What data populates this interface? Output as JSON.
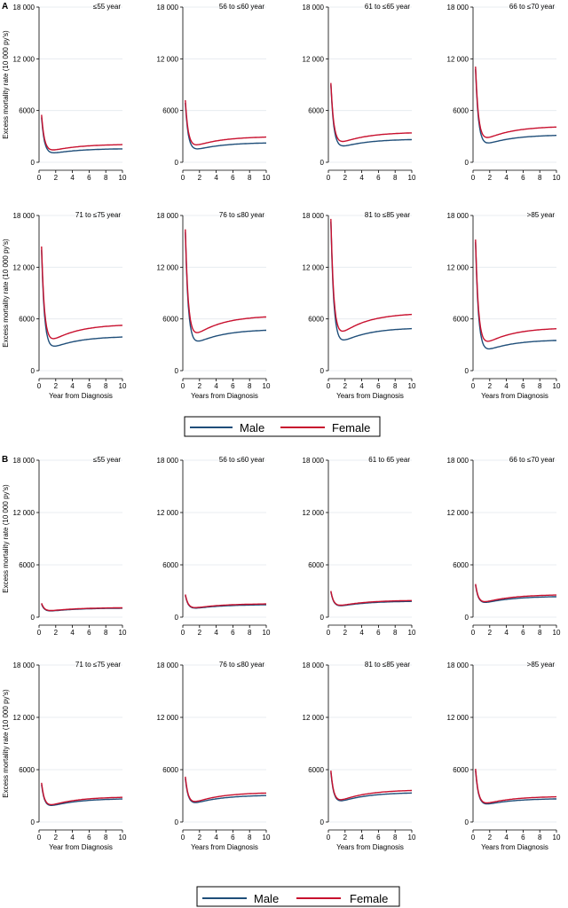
{
  "colors": {
    "male": "#1f4e79",
    "female": "#c8102e",
    "grid": "#e3e8ee",
    "axis": "#000000"
  },
  "figure": {
    "panel_labels": [
      "A",
      "B"
    ]
  },
  "legend": {
    "male_label": "Male",
    "female_label": "Female"
  },
  "chart_data": [
    {
      "type": "line",
      "panel": "A",
      "row_xlabels": [
        "Year from Diagnosis",
        "Years from Diagnosis",
        "Years from Diagnosis",
        "Years from Diagnosis"
      ],
      "ylabel": "Excess mortality rate (10 000 py's)",
      "ylim": [
        0,
        18000
      ],
      "yticks": [
        0,
        6000,
        12000,
        18000
      ],
      "ytick_labels": [
        "0",
        "6000",
        "12 000",
        "18 000"
      ],
      "xlim": [
        0,
        10
      ],
      "xticks": [
        0,
        2,
        4,
        6,
        8,
        10
      ],
      "xtick_labels": [
        "0",
        "2",
        "4",
        "6",
        "8",
        "10"
      ],
      "subplots": [
        {
          "title": "≤55 year",
          "series": [
            {
              "name": "Male",
              "start": 5200,
              "min": 1000,
              "end": 1600
            },
            {
              "name": "Female",
              "start": 5500,
              "min": 1350,
              "end": 2100
            }
          ]
        },
        {
          "title": "56 to ≤60 year",
          "series": [
            {
              "name": "Male",
              "start": 6900,
              "min": 1400,
              "end": 2300
            },
            {
              "name": "Female",
              "start": 7200,
              "min": 1900,
              "end": 3000
            }
          ]
        },
        {
          "title": "61 to ≤65 year",
          "series": [
            {
              "name": "Male",
              "start": 9000,
              "min": 1800,
              "end": 2700
            },
            {
              "name": "Female",
              "start": 9200,
              "min": 2300,
              "end": 3500
            }
          ]
        },
        {
          "title": "66 to ≤70 year",
          "series": [
            {
              "name": "Male",
              "start": 10800,
              "min": 2100,
              "end": 3200
            },
            {
              "name": "Female",
              "start": 11100,
              "min": 2700,
              "end": 4200
            }
          ]
        },
        {
          "title": "71 to ≤75 year",
          "series": [
            {
              "name": "Male",
              "start": 14000,
              "min": 2700,
              "end": 4000
            },
            {
              "name": "Female",
              "start": 14400,
              "min": 3500,
              "end": 5400
            }
          ]
        },
        {
          "title": "76 to ≤80 year",
          "series": [
            {
              "name": "Male",
              "start": 16100,
              "min": 3300,
              "end": 4800
            },
            {
              "name": "Female",
              "start": 16400,
              "min": 4200,
              "end": 6400
            }
          ]
        },
        {
          "title": "81 to ≤85 year",
          "series": [
            {
              "name": "Male",
              "start": 17300,
              "min": 3400,
              "end": 5000
            },
            {
              "name": "Female",
              "start": 17600,
              "min": 4300,
              "end": 6700
            }
          ]
        },
        {
          "title": ">85 year",
          "series": [
            {
              "name": "Male",
              "start": 14900,
              "min": 2300,
              "end": 3600
            },
            {
              "name": "Female",
              "start": 15200,
              "min": 3100,
              "end": 5000
            }
          ]
        }
      ]
    },
    {
      "type": "line",
      "panel": "B",
      "row_xlabels": [
        "Year from Diagnosis",
        "Years from Diagnosis",
        "Years from Diagnosis",
        "Years from Diagnosis"
      ],
      "ylabel": "Excess mortality rate (10 000 py's)",
      "ylim": [
        0,
        18000
      ],
      "yticks": [
        0,
        6000,
        12000,
        18000
      ],
      "ytick_labels": [
        "0",
        "6000",
        "12 000",
        "18 000"
      ],
      "xlim": [
        0,
        10
      ],
      "xticks": [
        0,
        2,
        4,
        6,
        8,
        10
      ],
      "xtick_labels": [
        "0",
        "2",
        "4",
        "6",
        "8",
        "10"
      ],
      "subplots": [
        {
          "title": "≤55 year",
          "series": [
            {
              "name": "Male",
              "start": 1500,
              "min": 750,
              "end": 1050
            },
            {
              "name": "Female",
              "start": 1600,
              "min": 800,
              "end": 1100
            }
          ]
        },
        {
          "title": "56 to ≤60 year",
          "series": [
            {
              "name": "Male",
              "start": 2500,
              "min": 1100,
              "end": 1450
            },
            {
              "name": "Female",
              "start": 2600,
              "min": 1150,
              "end": 1550
            }
          ]
        },
        {
          "title": "61 to 65 year",
          "series": [
            {
              "name": "Male",
              "start": 2900,
              "min": 1400,
              "end": 1850
            },
            {
              "name": "Female",
              "start": 3000,
              "min": 1450,
              "end": 1950
            }
          ]
        },
        {
          "title": "66 to ≤70 year",
          "series": [
            {
              "name": "Male",
              "start": 3700,
              "min": 1800,
              "end": 2400
            },
            {
              "name": "Female",
              "start": 3800,
              "min": 1850,
              "end": 2600
            }
          ]
        },
        {
          "title": "71 to ≤75 year",
          "series": [
            {
              "name": "Male",
              "start": 4300,
              "min": 2000,
              "end": 2700
            },
            {
              "name": "Female",
              "start": 4500,
              "min": 2050,
              "end": 2900
            }
          ]
        },
        {
          "title": "76 to ≤80 year",
          "series": [
            {
              "name": "Male",
              "start": 5000,
              "min": 2400,
              "end": 3100
            },
            {
              "name": "Female",
              "start": 5200,
              "min": 2450,
              "end": 3400
            }
          ]
        },
        {
          "title": "81 to ≤85 year",
          "series": [
            {
              "name": "Male",
              "start": 5700,
              "min": 2600,
              "end": 3400
            },
            {
              "name": "Female",
              "start": 5900,
              "min": 2650,
              "end": 3700
            }
          ]
        },
        {
          "title": ">85 year",
          "series": [
            {
              "name": "Male",
              "start": 5900,
              "min": 2300,
              "end": 2700
            },
            {
              "name": "Female",
              "start": 6100,
              "min": 2350,
              "end": 2950
            }
          ]
        }
      ]
    }
  ]
}
